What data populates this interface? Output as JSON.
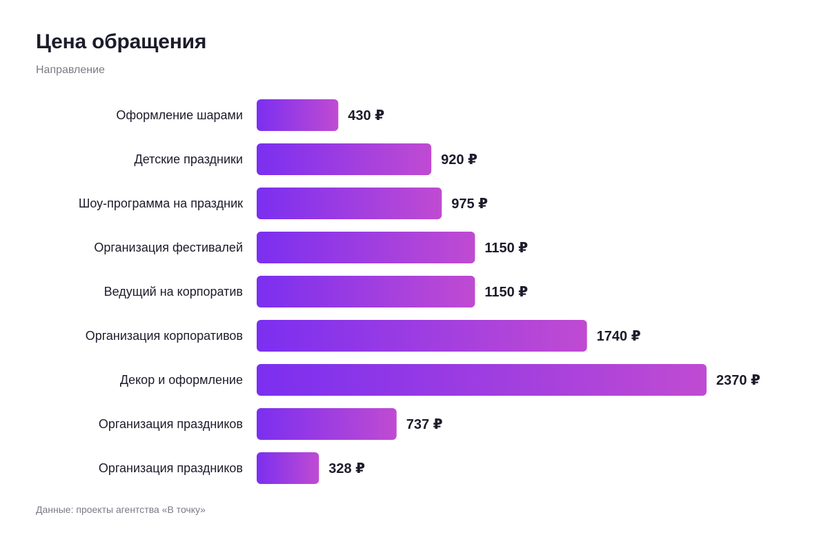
{
  "header": {
    "title": "Цена обращения",
    "subtitle": "Направление"
  },
  "footer": {
    "source": "Данные: проекты агентства «В точку»"
  },
  "currency": "₽",
  "colors": {
    "bar_start": "#7b2ff0",
    "bar_end": "#c04bd2",
    "label": "#1c1c2b",
    "value": "#1c1c2b"
  },
  "chart_data": {
    "type": "bar",
    "orientation": "horizontal",
    "categories": [
      "Оформление шарами",
      "Детские праздники",
      "Шоу-программа на праздник",
      "Организация фестивалей",
      "Ведущий на корпоратив",
      "Организация корпоративов",
      "Декор и оформление",
      "Организация праздников",
      "Организация праздников"
    ],
    "values": [
      430,
      920,
      975,
      1150,
      1150,
      1740,
      2370,
      737,
      328
    ],
    "value_labels": [
      "430 ₽",
      "920 ₽",
      "975 ₽",
      "1150 ₽",
      "1150 ₽",
      "1740 ₽",
      "2370 ₽",
      "737 ₽",
      "328 ₽"
    ],
    "title": "Цена обращения",
    "xlabel": "",
    "ylabel": "Направление",
    "xlim": [
      0,
      2370
    ],
    "grid": false,
    "legend": "none"
  }
}
